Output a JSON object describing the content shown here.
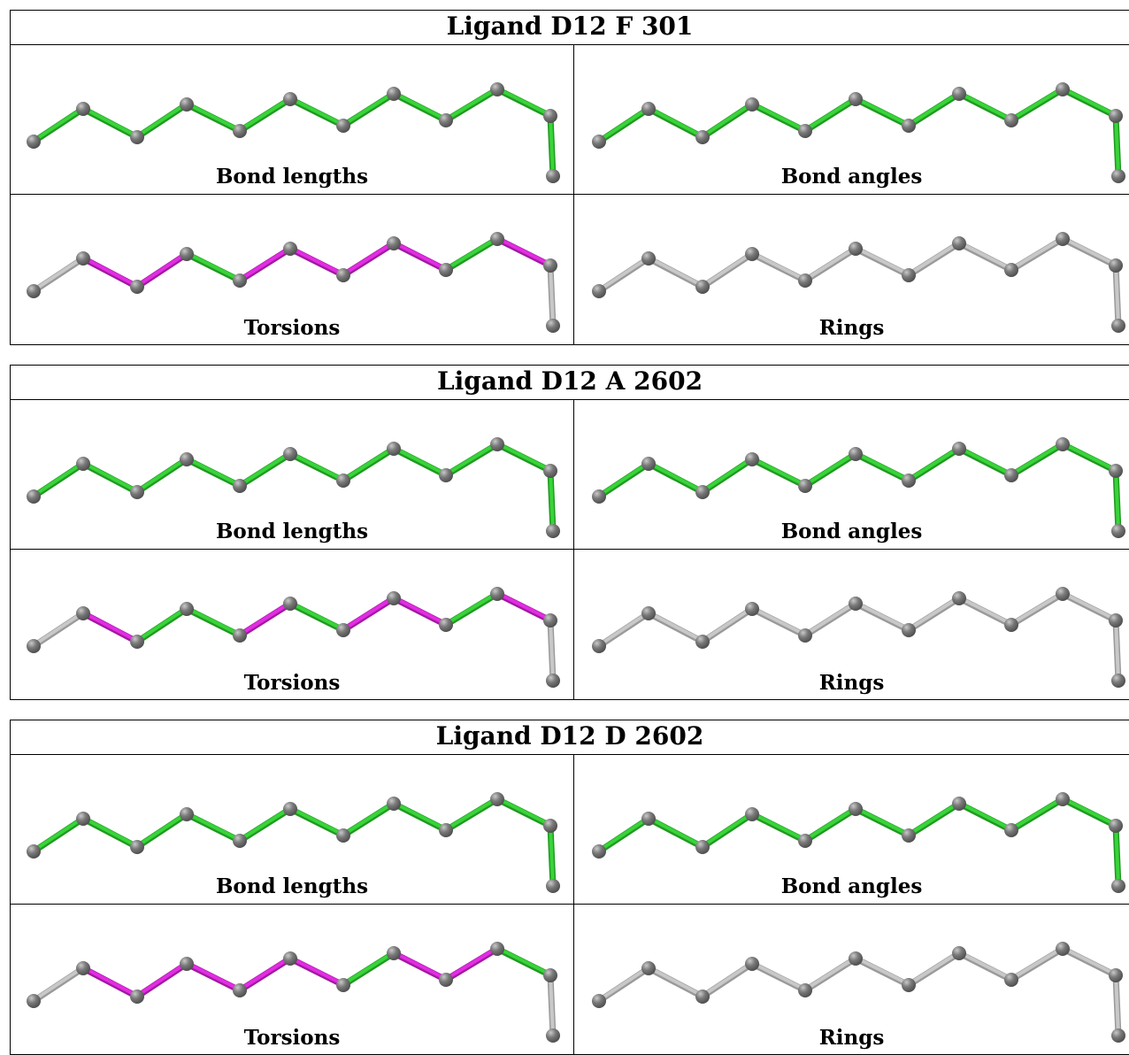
{
  "colors": {
    "ok": "#39d33a",
    "outlier": "#e22de2",
    "none": "#c8c8c8",
    "atom": "#6e6e6e",
    "border": "#000000"
  },
  "ligands": [
    {
      "title": "Ligand D12 F 301",
      "panels": [
        {
          "label": "Bond lengths",
          "bonds": [
            "ok",
            "ok",
            "ok",
            "ok",
            "ok",
            "ok",
            "ok",
            "ok",
            "ok",
            "ok",
            "ok"
          ]
        },
        {
          "label": "Bond angles",
          "bonds": [
            "ok",
            "ok",
            "ok",
            "ok",
            "ok",
            "ok",
            "ok",
            "ok",
            "ok",
            "ok",
            "ok"
          ]
        },
        {
          "label": "Torsions",
          "bonds": [
            "none",
            "outlier",
            "outlier",
            "ok",
            "outlier",
            "outlier",
            "outlier",
            "outlier",
            "ok",
            "outlier",
            "none"
          ]
        },
        {
          "label": "Rings",
          "bonds": [
            "none",
            "none",
            "none",
            "none",
            "none",
            "none",
            "none",
            "none",
            "none",
            "none",
            "none"
          ]
        }
      ]
    },
    {
      "title": "Ligand D12 A 2602",
      "panels": [
        {
          "label": "Bond lengths",
          "bonds": [
            "ok",
            "ok",
            "ok",
            "ok",
            "ok",
            "ok",
            "ok",
            "ok",
            "ok",
            "ok",
            "ok"
          ]
        },
        {
          "label": "Bond angles",
          "bonds": [
            "ok",
            "ok",
            "ok",
            "ok",
            "ok",
            "ok",
            "ok",
            "ok",
            "ok",
            "ok",
            "ok"
          ]
        },
        {
          "label": "Torsions",
          "bonds": [
            "none",
            "outlier",
            "ok",
            "ok",
            "outlier",
            "ok",
            "outlier",
            "outlier",
            "ok",
            "outlier",
            "none"
          ]
        },
        {
          "label": "Rings",
          "bonds": [
            "none",
            "none",
            "none",
            "none",
            "none",
            "none",
            "none",
            "none",
            "none",
            "none",
            "none"
          ]
        }
      ]
    },
    {
      "title": "Ligand D12 D 2602",
      "panels": [
        {
          "label": "Bond lengths",
          "bonds": [
            "ok",
            "ok",
            "ok",
            "ok",
            "ok",
            "ok",
            "ok",
            "ok",
            "ok",
            "ok",
            "ok"
          ]
        },
        {
          "label": "Bond angles",
          "bonds": [
            "ok",
            "ok",
            "ok",
            "ok",
            "ok",
            "ok",
            "ok",
            "ok",
            "ok",
            "ok",
            "ok"
          ]
        },
        {
          "label": "Torsions",
          "bonds": [
            "none",
            "outlier",
            "outlier",
            "outlier",
            "outlier",
            "outlier",
            "ok",
            "outlier",
            "outlier",
            "ok",
            "none"
          ]
        },
        {
          "label": "Rings",
          "bonds": [
            "none",
            "none",
            "none",
            "none",
            "none",
            "none",
            "none",
            "none",
            "none",
            "none",
            "none"
          ]
        }
      ]
    }
  ]
}
